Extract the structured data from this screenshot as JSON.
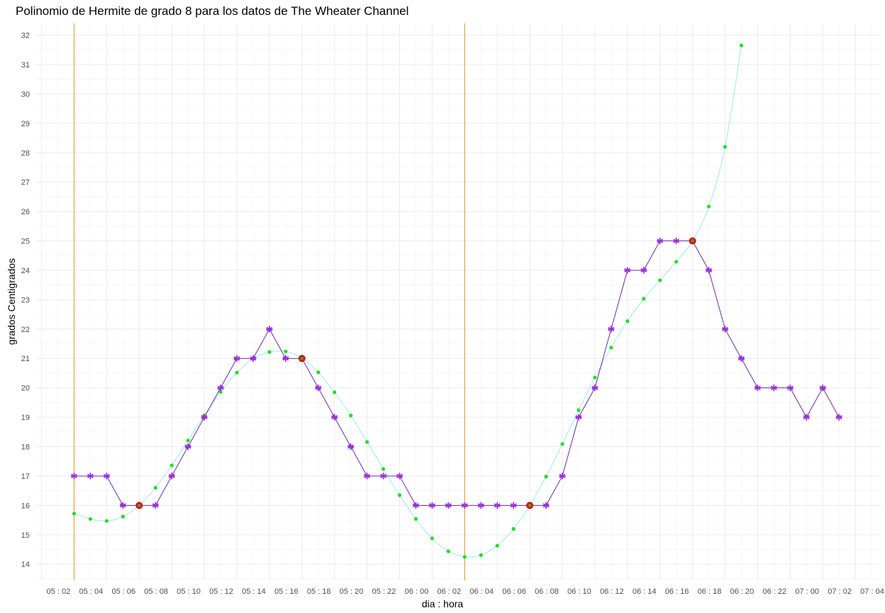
{
  "chart_data": {
    "type": "line",
    "title": "Polinomio de Hermite de grado 8 para los datos de The Wheater Channel",
    "xlabel": "dia : hora",
    "ylabel": "grados Centigrados",
    "x_tick_labels": [
      "05 : 02",
      "05 : 04",
      "05 : 06",
      "05 : 08",
      "05 : 10",
      "05 : 12",
      "05 : 14",
      "05 : 16",
      "05 : 18",
      "05 : 20",
      "05 : 22",
      "06 : 00",
      "06 : 02",
      "06 : 04",
      "06 : 06",
      "06 : 08",
      "06 : 10",
      "06 : 12",
      "06 : 14",
      "06 : 16",
      "06 : 18",
      "06 : 20",
      "06 : 22",
      "07 : 00",
      "07 : 02",
      "07 : 04"
    ],
    "y_ticks": [
      14,
      15,
      16,
      17,
      18,
      19,
      20,
      21,
      22,
      23,
      24,
      25,
      26,
      27,
      28,
      29,
      30,
      31,
      32
    ],
    "ylim": [
      13.45,
      32.4
    ],
    "grid": true,
    "vertical_lines": [
      {
        "at_tick": 0,
        "color": "#e8a33d"
      },
      {
        "at_tick": 12,
        "color": "#e8a33d"
      }
    ],
    "series": [
      {
        "marker": "star",
        "color": "#9b30d9",
        "line_color": "#6a2aa8",
        "values": [
          17,
          17,
          17,
          16,
          16,
          16,
          17,
          18,
          19,
          20,
          21,
          21,
          22,
          21,
          21,
          20,
          19,
          18,
          17,
          17,
          17,
          16,
          16,
          16,
          16,
          16,
          16,
          16,
          16,
          16,
          17,
          19,
          20,
          22,
          24,
          24,
          25,
          25,
          25,
          24,
          22,
          21,
          20,
          20,
          20,
          19,
          20,
          19
        ]
      },
      {
        "marker": "dot",
        "color": "#22dd22",
        "line_color": "#9ee8ee",
        "values": [
          15.72,
          15.54,
          15.47,
          15.62,
          16.0,
          16.6,
          17.36,
          18.21,
          19.06,
          19.86,
          20.52,
          20.99,
          21.22,
          21.24,
          21.0,
          20.53,
          19.85,
          19.06,
          18.16,
          17.24,
          16.35,
          15.54,
          14.88,
          14.44,
          14.25,
          14.31,
          14.63,
          15.2,
          16.0,
          16.98,
          18.09,
          19.24,
          20.35,
          21.37,
          22.27,
          23.03,
          23.66,
          24.29,
          25.0,
          26.17,
          28.2,
          31.65
        ]
      }
    ],
    "hermite_nodes": [
      {
        "x_index": 4,
        "value": 16
      },
      {
        "x_index": 14,
        "value": 21
      },
      {
        "x_index": 28,
        "value": 16
      },
      {
        "x_index": 38,
        "value": 25
      }
    ],
    "node_color": "#e00000"
  }
}
